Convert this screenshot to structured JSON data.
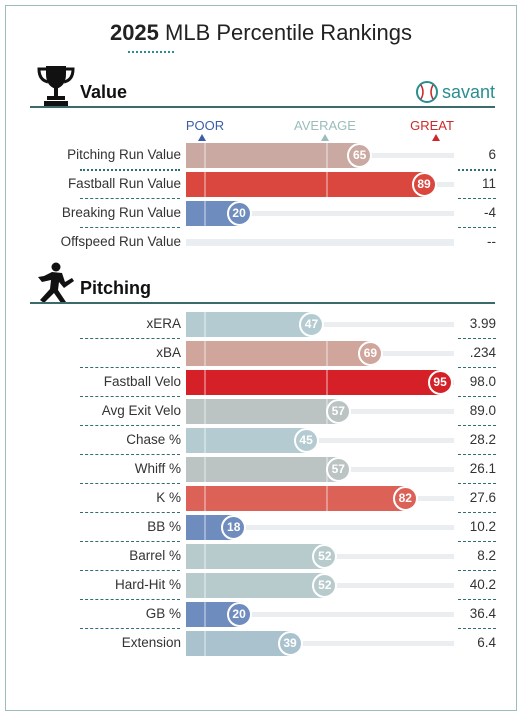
{
  "header": {
    "year": "2025",
    "title_rest": " MLB Percentile Rankings"
  },
  "value_section": {
    "title": "Value",
    "trophy_icon": "trophy-icon",
    "brand_name": "savant",
    "brand_icon": "baseball-icon"
  },
  "scale": {
    "poor": "POOR",
    "average": "AVERAGE",
    "great": "GREAT",
    "poor_color": "#3b5ea8",
    "average_color": "#9bbcbc",
    "great_color": "#cc2a2a"
  },
  "pitching_section": {
    "title": "Pitching",
    "pitcher_icon": "pitcher-silhouette-icon"
  },
  "chart_data": [
    {
      "type": "bar",
      "section": "Value",
      "xlim": [
        0,
        100
      ],
      "rows": [
        {
          "label": "Pitching Run Value",
          "percentile": 65,
          "value": "6",
          "color": "#c9a9a1"
        },
        {
          "label": "Fastball Run Value",
          "percentile": 89,
          "value": "11",
          "color": "#d9473f"
        },
        {
          "label": "Breaking Run Value",
          "percentile": 20,
          "value": "-4",
          "color": "#6f8cbf"
        },
        {
          "label": "Offspeed Run Value",
          "percentile": null,
          "value": "--",
          "color": "#eaeef0"
        }
      ]
    },
    {
      "type": "bar",
      "section": "Pitching",
      "xlim": [
        0,
        100
      ],
      "rows": [
        {
          "label": "xERA",
          "percentile": 47,
          "value": "3.99",
          "color": "#b4ccd1"
        },
        {
          "label": "xBA",
          "percentile": 69,
          "value": ".234",
          "color": "#cfa59c"
        },
        {
          "label": "Fastball Velo",
          "percentile": 95,
          "value": "98.0",
          "color": "#d62028"
        },
        {
          "label": "Avg Exit Velo",
          "percentile": 57,
          "value": "89.0",
          "color": "#bbc3c3"
        },
        {
          "label": "Chase %",
          "percentile": 45,
          "value": "28.2",
          "color": "#b4ccd1"
        },
        {
          "label": "Whiff %",
          "percentile": 57,
          "value": "26.1",
          "color": "#bbc3c3"
        },
        {
          "label": "K %",
          "percentile": 82,
          "value": "27.6",
          "color": "#dc6258"
        },
        {
          "label": "BB %",
          "percentile": 18,
          "value": "10.2",
          "color": "#6f8cbf"
        },
        {
          "label": "Barrel %",
          "percentile": 52,
          "value": "8.2",
          "color": "#b8cbcc"
        },
        {
          "label": "Hard-Hit %",
          "percentile": 52,
          "value": "40.2",
          "color": "#b8cbcc"
        },
        {
          "label": "GB %",
          "percentile": 20,
          "value": "36.4",
          "color": "#6f8cbf"
        },
        {
          "label": "Extension",
          "percentile": 39,
          "value": "6.4",
          "color": "#aac2cd"
        }
      ]
    }
  ]
}
